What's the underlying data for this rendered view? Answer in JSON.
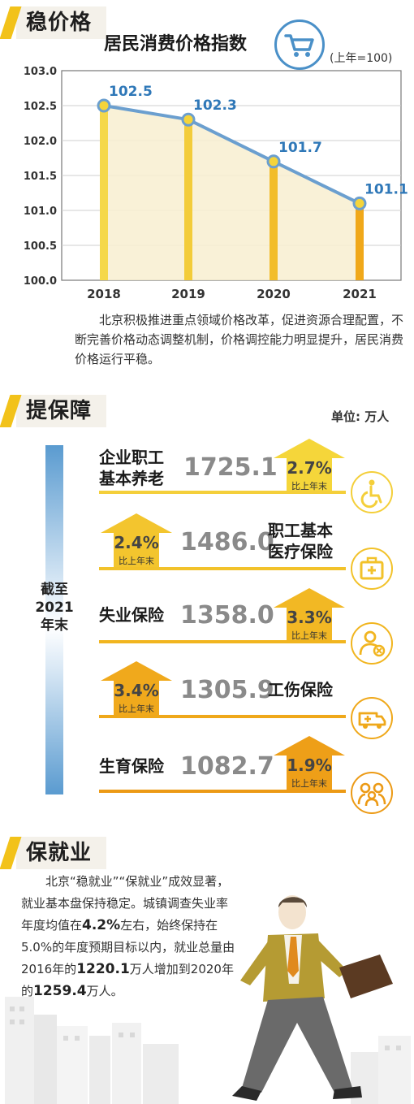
{
  "sections": {
    "price": "稳价格",
    "security": "提保障",
    "employment": "保就业"
  },
  "chart_data": {
    "type": "bar",
    "title": "居民消费价格指数",
    "unit": "(上年=100)",
    "categories": [
      "2018",
      "2019",
      "2020",
      "2021"
    ],
    "values": [
      102.5,
      102.3,
      101.7,
      101.1
    ],
    "value_labels": [
      "102.5",
      "102.3",
      "101.7",
      "101.1"
    ],
    "ylim": [
      100.0,
      103.0
    ],
    "yticks": [
      "100.0",
      "100.5",
      "101.0",
      "101.5",
      "102.0",
      "102.5",
      "103.0"
    ],
    "overlay": "line",
    "grid": true
  },
  "price_desc": "北京积极推进重点领域价格改革，促进资源合理配置，不断完善价格动态调整机制，价格调控能力明显提升，居民消费价格运行平稳。",
  "security": {
    "unit": "单位: 万人",
    "side_label": [
      "截至",
      "2021",
      "年末"
    ],
    "items": [
      {
        "name_l1": "企业职工",
        "name_l2": "基本养老",
        "value": "1725.1",
        "pct": "2.7%",
        "sub": "比上年末",
        "icon": "wheelchair-icon"
      },
      {
        "name_l1": "职工基本",
        "name_l2": "医疗保险",
        "value": "1486.0",
        "pct": "2.4%",
        "sub": "比上年末",
        "icon": "medical-kit-icon"
      },
      {
        "name_l1": "失业保险",
        "name_l2": "",
        "value": "1358.0",
        "pct": "3.3%",
        "sub": "比上年末",
        "icon": "unemployed-person-icon"
      },
      {
        "name_l1": "工伤保险",
        "name_l2": "",
        "value": "1305.9",
        "pct": "3.4%",
        "sub": "比上年末",
        "icon": "ambulance-icon"
      },
      {
        "name_l1": "生育保险",
        "name_l2": "",
        "value": "1082.7",
        "pct": "1.9%",
        "sub": "比上年末",
        "icon": "family-icon"
      }
    ]
  },
  "employment": {
    "t1": "北京“稳就业”“保就业”成效显著，就业基本盘保持稳定。城镇调查失业率年度均值在",
    "v1": "4.2%",
    "t2": "左右，始终保持在5.0%的年度预期目标以内，就业总量由2016年的",
    "v2": "1220.1",
    "t3": "万人增加到2020年的",
    "v3": "1259.4",
    "t4": "万人。"
  },
  "colors": {
    "accent_yellow": "#f2c21a",
    "bar_orange": "#f0a81a",
    "line_blue": "#6b9fcf",
    "label_blue": "#2f78b8"
  }
}
